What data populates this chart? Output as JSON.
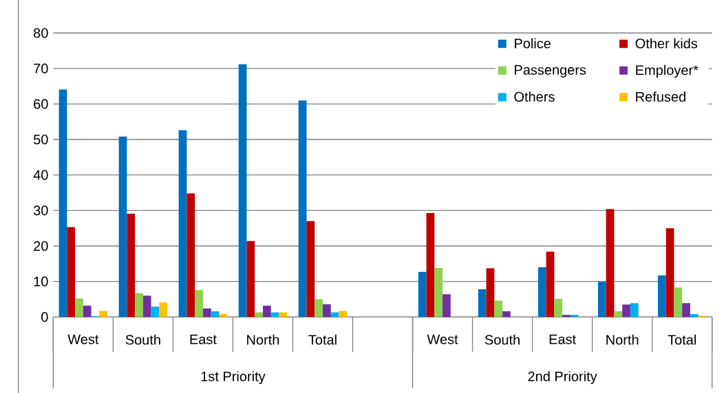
{
  "chart_data": {
    "type": "bar",
    "categories": [
      "West",
      "South",
      "East",
      "North",
      "Total",
      null,
      "West",
      "South",
      "East",
      "North",
      "Total"
    ],
    "series": [
      {
        "name": "Police",
        "color": "#0070c0",
        "values": [
          64.1,
          50.8,
          52.6,
          71.2,
          61,
          null,
          12.7,
          7.8,
          14,
          9.9,
          11.7
        ]
      },
      {
        "name": "Other kids",
        "color": "#c00000",
        "values": [
          25.3,
          29.1,
          34.8,
          21.4,
          27,
          null,
          29.3,
          13.7,
          18.4,
          30.4,
          25
        ]
      },
      {
        "name": "Passengers",
        "color": "#92d050",
        "values": [
          5.2,
          6.7,
          7.6,
          1.3,
          5,
          null,
          13.8,
          4.6,
          5.1,
          1.6,
          8.3
        ]
      },
      {
        "name": "Employer*",
        "color": "#7030a0",
        "values": [
          3.2,
          6,
          2.4,
          3.2,
          3.6,
          null,
          6.4,
          1.6,
          0.6,
          3.5,
          3.9
        ]
      },
      {
        "name": "Others",
        "color": "#00b0f0",
        "values": [
          0.2,
          2.9,
          1.6,
          1.3,
          1.3,
          null,
          null,
          0,
          0.6,
          3.9,
          0.8
        ]
      },
      {
        "name": "Refused",
        "color": "#ffc000",
        "values": [
          1.7,
          4.1,
          0.8,
          1.3,
          1.7,
          null,
          0,
          0,
          0,
          0,
          0.3
        ]
      }
    ],
    "ylim": [
      0,
      80
    ],
    "yticks": [
      0,
      10,
      20,
      30,
      40,
      50,
      60,
      70,
      80
    ],
    "grid": "y",
    "legend": "top right",
    "annotations": [
      "1st Priority",
      "2nd Priority"
    ]
  }
}
